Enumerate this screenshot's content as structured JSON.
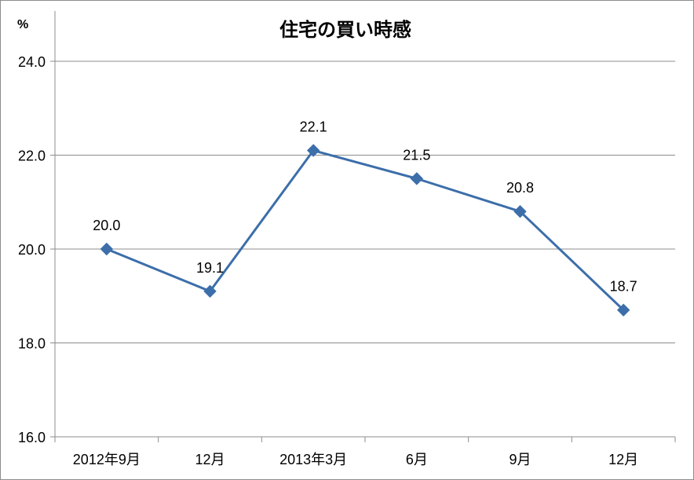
{
  "chart_data": {
    "type": "line",
    "title": "住宅の買い時感",
    "ylabel": "%",
    "xlabel": "",
    "categories": [
      "2012年9月",
      "12月",
      "2013年3月",
      "6月",
      "9月",
      "12月"
    ],
    "series": [
      {
        "values": [
          20.0,
          19.1,
          22.1,
          21.5,
          20.8,
          18.7
        ],
        "color": "#3c6eaa",
        "marker": "diamond"
      }
    ],
    "data_labels": [
      "20.0",
      "19.1",
      "22.1",
      "21.5",
      "20.8",
      "18.7"
    ],
    "ylim": [
      16.0,
      24.0
    ],
    "yticks": [
      "16.0",
      "18.0",
      "20.0",
      "22.0",
      "24.0"
    ],
    "grid": true,
    "legend": "none",
    "colors": {
      "grid": "#8c8c8c",
      "axis": "#8c8c8c"
    }
  }
}
